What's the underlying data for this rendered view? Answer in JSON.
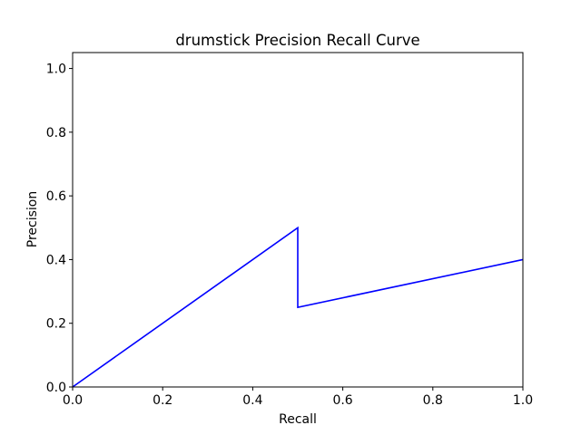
{
  "chart_data": {
    "type": "line",
    "title": "drumstick Precision Recall Curve",
    "xlabel": "Recall",
    "ylabel": "Precision",
    "xlim": [
      0.0,
      1.0
    ],
    "ylim": [
      0.0,
      1.05
    ],
    "xticks": [
      0.0,
      0.2,
      0.4,
      0.6,
      0.8,
      1.0
    ],
    "yticks": [
      0.0,
      0.2,
      0.4,
      0.6,
      0.8,
      1.0
    ],
    "xtick_labels": [
      "0.0",
      "0.2",
      "0.4",
      "0.6",
      "0.8",
      "1.0"
    ],
    "ytick_labels": [
      "0.0",
      "0.2",
      "0.4",
      "0.6",
      "0.8",
      "1.0"
    ],
    "grid": false,
    "legend": "none",
    "series": [
      {
        "color": "#0000ff",
        "x": [
          0.0,
          0.5,
          0.5,
          1.0
        ],
        "y": [
          0.0,
          0.5,
          0.25,
          0.4
        ]
      }
    ]
  }
}
